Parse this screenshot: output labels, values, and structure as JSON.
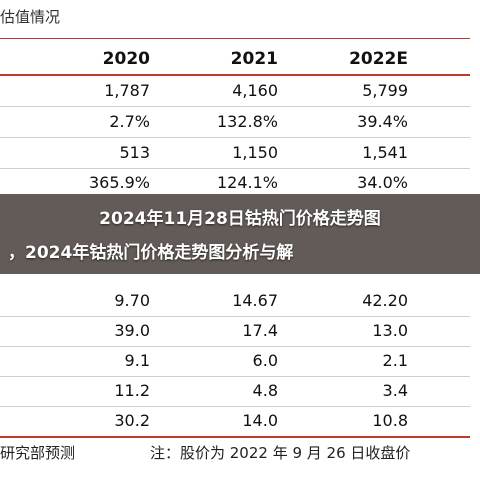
{
  "title": "估值情况",
  "columns": [
    "2020",
    "2021",
    "2022E"
  ],
  "rows": [
    [
      "1,787",
      "4,160",
      "5,799"
    ],
    [
      "2.7%",
      "132.8%",
      "39.4%"
    ],
    [
      "513",
      "1,150",
      "1,541"
    ],
    [
      "365.9%",
      "124.1%",
      "34.0%"
    ],
    [
      "",
      "",
      ""
    ],
    [
      "",
      "",
      ""
    ],
    [
      "9.70",
      "14.67",
      "42.20"
    ],
    [
      "39.0",
      "17.4",
      "13.0"
    ],
    [
      "9.1",
      "6.0",
      "2.1"
    ],
    [
      "11.2",
      "4.8",
      "3.4"
    ],
    [
      "30.2",
      "14.0",
      "10.8"
    ]
  ],
  "overlay": {
    "line1": "2024年11月28日钴热门价格走势图",
    "line2": "，2024年钴热门价格走势图分析与解"
  },
  "footer": {
    "source": "研究部预测",
    "note": "注：股价为 2022 年 9 月 26 日收盘价"
  },
  "colors": {
    "rule": "#c0392b",
    "overlay": "#372d28"
  }
}
